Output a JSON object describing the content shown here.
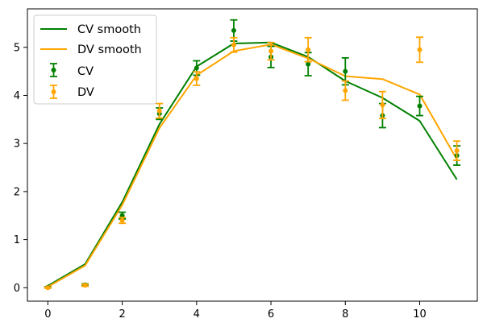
{
  "chart_data": {
    "type": "line",
    "x_ticks": [
      0,
      2,
      4,
      6,
      8,
      10
    ],
    "y_ticks": [
      0,
      1,
      2,
      3,
      4,
      5
    ],
    "xlim": [
      -0.55,
      11.55
    ],
    "ylim": [
      -0.28,
      5.8
    ],
    "grid": false,
    "legend_position": "top-left",
    "colors": {
      "cv": "#008000",
      "dv": "#FFA500"
    },
    "lines": [
      {
        "name": "CV smooth",
        "color": "#008000",
        "x": [
          0,
          1,
          2,
          3,
          4,
          5,
          6,
          7,
          8,
          9,
          10,
          11
        ],
        "y": [
          0.04,
          0.49,
          1.78,
          3.4,
          4.6,
          5.08,
          5.1,
          4.8,
          4.3,
          3.95,
          3.47,
          2.25
        ]
      },
      {
        "name": "DV smooth",
        "color": "#FFA500",
        "x": [
          0,
          1,
          2,
          3,
          4,
          5,
          6,
          7,
          8,
          9,
          10,
          11
        ],
        "y": [
          0.02,
          0.46,
          1.72,
          3.32,
          4.42,
          4.92,
          5.06,
          4.77,
          4.4,
          4.34,
          4.02,
          2.67
        ]
      }
    ],
    "errorbars": [
      {
        "name": "CV",
        "color": "#008000",
        "x": [
          0,
          1,
          2,
          3,
          4,
          5,
          6,
          7,
          8,
          9,
          10,
          11
        ],
        "y": [
          0.01,
          0.06,
          1.5,
          3.62,
          4.57,
          5.35,
          4.8,
          4.65,
          4.5,
          3.58,
          3.78,
          2.75
        ],
        "err": [
          0.01,
          0.02,
          0.07,
          0.12,
          0.15,
          0.22,
          0.22,
          0.24,
          0.28,
          0.25,
          0.2,
          0.2
        ]
      },
      {
        "name": "DV",
        "color": "#FFA500",
        "x": [
          0,
          1,
          2,
          3,
          4,
          5,
          6,
          7,
          8,
          9,
          10,
          11
        ],
        "y": [
          0.0,
          0.05,
          1.4,
          3.68,
          4.35,
          5.05,
          4.92,
          4.95,
          4.1,
          3.8,
          4.95,
          2.85
        ],
        "err": [
          0.01,
          0.02,
          0.06,
          0.15,
          0.14,
          0.15,
          0.18,
          0.25,
          0.2,
          0.28,
          0.26,
          0.2
        ]
      }
    ],
    "legend": {
      "smooth_cv": "CV smooth",
      "smooth_dv": "DV smooth",
      "points_cv": "CV",
      "points_dv": "DV"
    }
  }
}
